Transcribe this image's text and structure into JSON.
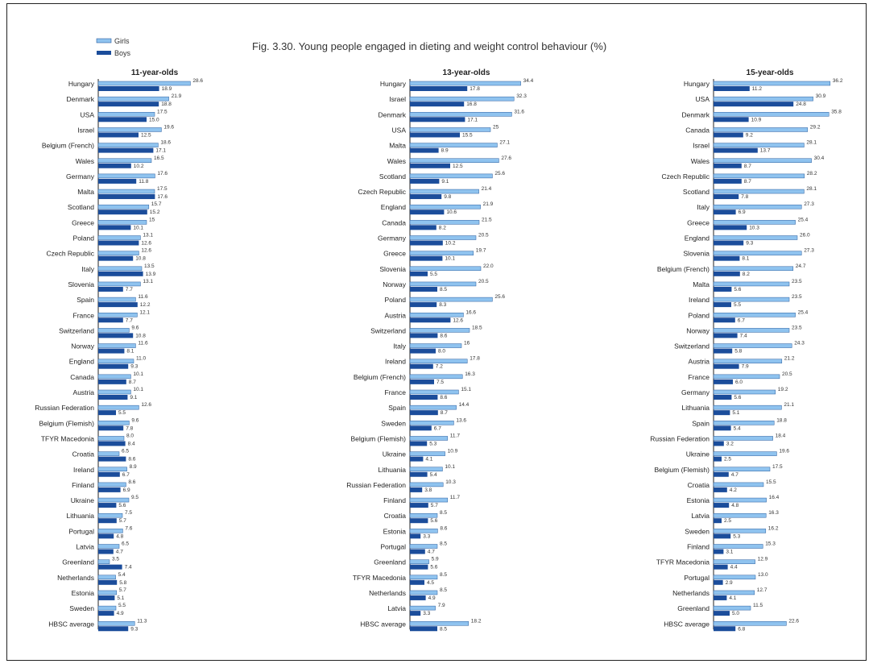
{
  "chart_data": {
    "type": "bar",
    "title": "Fig. 3.30. Young people engaged in dieting and weight control behaviour (%)",
    "legend": {
      "position": "top-left",
      "entries": [
        "Girls",
        "Boys"
      ]
    },
    "colors": {
      "girls": "#8fc3ef",
      "girls_stroke": "#2a5d9e",
      "boys": "#1b4d9b",
      "axis": "#222222"
    },
    "panels": [
      {
        "title": "11-year-olds",
        "xlim": [
          0,
          30
        ],
        "categories": [
          "Hungary",
          "Denmark",
          "USA",
          "Israel",
          "Belgium (French)",
          "Wales",
          "Germany",
          "Malta",
          "Scotland",
          "Greece",
          "Poland",
          "Czech Republic",
          "Italy",
          "Slovenia",
          "Spain",
          "France",
          "Switzerland",
          "Norway",
          "England",
          "Canada",
          "Austria",
          "Russian Federation",
          "Belgium (Flemish)",
          "TFYR Macedonia",
          "Croatia",
          "Ireland",
          "Finland",
          "Ukraine",
          "Lithuania",
          "Portugal",
          "Latvia",
          "Greenland",
          "Netherlands",
          "Estonia",
          "Sweden",
          "HBSC average"
        ],
        "series": [
          {
            "name": "Girls",
            "values": [
              28.6,
              21.9,
              17.5,
              19.6,
              18.6,
              16.5,
              17.6,
              17.5,
              15.7,
              15,
              13.1,
              12.6,
              13.5,
              13.1,
              11.6,
              12.1,
              9.6,
              11.6,
              11.0,
              10.1,
              10.1,
              12.6,
              9.6,
              8.0,
              6.5,
              8.9,
              8.6,
              9.5,
              7.5,
              7.6,
              6.5,
              3.5,
              5.4,
              5.7,
              5.5,
              11.3
            ]
          },
          {
            "name": "Boys",
            "values": [
              18.9,
              18.8,
              15.0,
              12.5,
              17.1,
              10.2,
              11.8,
              17.6,
              15.2,
              10.1,
              12.6,
              10.8,
              13.9,
              7.7,
              12.2,
              7.7,
              10.8,
              8.1,
              9.3,
              8.7,
              9.1,
              5.5,
              7.8,
              8.4,
              8.6,
              6.7,
              6.9,
              5.6,
              5.7,
              4.8,
              4.7,
              7.4,
              5.8,
              5.1,
              4.9,
              9.3
            ]
          },
          {
            "labels_girls": [
              "28.6",
              "21.9",
              "17.5",
              "19.6",
              "18.6",
              "16.5",
              "17.6",
              "17.5",
              "15.7",
              "15",
              "13.1",
              "12.6",
              "13.5",
              "13.1",
              "11.6",
              "12.1",
              "9.6",
              "11.6",
              "11.0",
              "10.1",
              "10.1",
              "12.6",
              "9.6",
              "8.0",
              "6.5",
              "8.9",
              "8.6",
              "9.5",
              "7.5",
              "7.6",
              "6.5",
              "3.5",
              "5.4",
              "5.7",
              "5.5",
              "11.3"
            ],
            "labels_boys": [
              "18.9",
              "18.8",
              "15.0",
              "12.5",
              "17.1",
              "10.2",
              "11.8",
              "17.6",
              "15.2",
              "10.1",
              "12.6",
              "10.8",
              "13.9",
              "7.7",
              "12.2",
              "7.7",
              "10.8",
              "8.1",
              "9.3",
              "8.7",
              "9.1",
              "5.5",
              "7.8",
              "8.4",
              "8.6",
              "6.7",
              "6.9",
              "5.6",
              "5.7",
              "4.8",
              "4.7",
              "7.4",
              "5.8",
              "5.1",
              "4.9",
              "9.3"
            ]
          }
        ]
      },
      {
        "title": "13-year-olds",
        "xlim": [
          0,
          35
        ],
        "categories": [
          "Hungary",
          "Israel",
          "Denmark",
          "USA",
          "Malta",
          "Wales",
          "Scotland",
          "Czech Republic",
          "England",
          "Canada",
          "Germany",
          "Greece",
          "Slovenia",
          "Norway",
          "Poland",
          "Austria",
          "Switzerland",
          "Italy",
          "Ireland",
          "Belgium (French)",
          "France",
          "Spain",
          "Sweden",
          "Belgium (Flemish)",
          "Ukraine",
          "Lithuania",
          "Russian Federation",
          "Finland",
          "Croatia",
          "Estonia",
          "Portugal",
          "Greenland",
          "TFYR Macedonia",
          "Netherlands",
          "Latvia",
          "HBSC average"
        ],
        "series": [
          {
            "name": "Girls",
            "values": [
              34.4,
              32.3,
              31.6,
              25,
              27.1,
              27.6,
              25.6,
              21.4,
              21.9,
              21.5,
              20.5,
              19.7,
              22.0,
              20.5,
              25.6,
              16.6,
              18.5,
              16,
              17.8,
              16.3,
              15.1,
              14.4,
              13.6,
              11.7,
              10.9,
              10.1,
              10.3,
              11.7,
              8.5,
              8.6,
              8.5,
              5.9,
              8.5,
              8.5,
              7.9,
              18.2
            ]
          },
          {
            "name": "Boys",
            "values": [
              17.8,
              16.8,
              17.1,
              15.5,
              8.9,
              12.5,
              9.1,
              9.8,
              10.6,
              8.2,
              10.2,
              10.1,
              5.5,
              8.5,
              8.3,
              12.6,
              8.6,
              8.0,
              7.2,
              7.5,
              8.6,
              8.7,
              6.7,
              5.3,
              4.1,
              5.4,
              3.8,
              5.7,
              5.6,
              3.3,
              4.7,
              5.6,
              4.5,
              4.9,
              3.3,
              8.5
            ]
          },
          {
            "labels_girls": [
              "34.4",
              "32.3",
              "31.6",
              "25",
              "27.1",
              "27.6",
              "25.6",
              "21.4",
              "21.9",
              "21.5",
              "20.5",
              "19.7",
              "22.0",
              "20.5",
              "25.6",
              "16.6",
              "18.5",
              "16",
              "17.8",
              "16.3",
              "15.1",
              "14.4",
              "13.6",
              "11.7",
              "10.9",
              "10.1",
              "10.3",
              "11.7",
              "8.5",
              "8.6",
              "8.5",
              "5.9",
              "8.5",
              "8.5",
              "7.9",
              "18.2"
            ],
            "labels_boys": [
              "17.8",
              "16.8",
              "17.1",
              "15.5",
              "8.9",
              "12.5",
              "9.1",
              "9.8",
              "10.6",
              "8.2",
              "10.2",
              "10.1",
              "5.5",
              "8.5",
              "8.3",
              "12.6",
              "8.6",
              "8.0",
              "7.2",
              "7.5",
              "8.6",
              "8.7",
              "6.7",
              "5.3",
              "4.1",
              "5.4",
              "3.8",
              "5.7",
              "5.6",
              "3.3",
              "4.7",
              "5.6",
              "4.5",
              "4.9",
              "3.3",
              "8.5"
            ]
          }
        ]
      },
      {
        "title": "15-year-olds",
        "xlim": [
          0,
          40
        ],
        "categories": [
          "Hungary",
          "USA",
          "Denmark",
          "Canada",
          "Israel",
          "Wales",
          "Czech Republic",
          "Scotland",
          "Italy",
          "Greece",
          "England",
          "Slovenia",
          "Belgium (French)",
          "Malta",
          "Ireland",
          "Poland",
          "Norway",
          "Switzerland",
          "Austria",
          "France",
          "Germany",
          "Lithuania",
          "Spain",
          "Russian Federation",
          "Ukraine",
          "Belgium (Flemish)",
          "Croatia",
          "Estonia",
          "Latvia",
          "Sweden",
          "Finland",
          "TFYR Macedonia",
          "Portugal",
          "Netherlands",
          "Greenland",
          "HBSC average"
        ],
        "series": [
          {
            "name": "Girls",
            "values": [
              36.2,
              30.9,
              35.8,
              29.2,
              28.1,
              30.4,
              28.2,
              28.1,
              27.3,
              25.4,
              26.0,
              27.3,
              24.7,
              23.5,
              23.5,
              25.4,
              23.5,
              24.3,
              21.2,
              20.5,
              19.2,
              21.1,
              18.8,
              18.4,
              19.6,
              17.5,
              15.5,
              16.4,
              16.3,
              16.2,
              15.3,
              12.9,
              13.0,
              12.7,
              11.5,
              22.6
            ]
          },
          {
            "name": "Boys",
            "values": [
              11.2,
              24.8,
              10.9,
              9.2,
              13.7,
              8.7,
              8.7,
              7.8,
              6.9,
              10.3,
              9.3,
              8.1,
              8.2,
              5.6,
              5.5,
              6.7,
              7.4,
              5.8,
              7.9,
              6.0,
              5.6,
              5.1,
              5.4,
              3.2,
              2.5,
              4.7,
              4.2,
              4.8,
              2.5,
              5.3,
              3.1,
              4.4,
              2.9,
              4.1,
              5.0,
              6.8
            ]
          },
          {
            "labels_girls": [
              "36.2",
              "30.9",
              "35.8",
              "29.2",
              "28.1",
              "30.4",
              "28.2",
              "28.1",
              "27.3",
              "25.4",
              "26.0",
              "27.3",
              "24.7",
              "23.5",
              "23.5",
              "25.4",
              "23.5",
              "24.3",
              "21.2",
              "20.5",
              "19.2",
              "21.1",
              "18.8",
              "18.4",
              "19.6",
              "17.5",
              "15.5",
              "16.4",
              "16.3",
              "16.2",
              "15.3",
              "12.9",
              "13.0",
              "12.7",
              "11.5",
              "22.6"
            ],
            "labels_boys": [
              "11.2",
              "24.8",
              "10.9",
              "9.2",
              "13.7",
              "8.7",
              "8.7",
              "7.8",
              "6.9",
              "10.3",
              "9.3",
              "8.1",
              "8.2",
              "5.6",
              "5.5",
              "6.7",
              "7.4",
              "5.8",
              "7.9",
              "6.0",
              "5.6",
              "5.1",
              "5.4",
              "3.2",
              "2.5",
              "4.7",
              "4.2",
              "4.8",
              "2.5",
              "5.3",
              "3.1",
              "4.4",
              "2.9",
              "4.1",
              "5.0",
              "6.8"
            ]
          }
        ]
      }
    ]
  }
}
